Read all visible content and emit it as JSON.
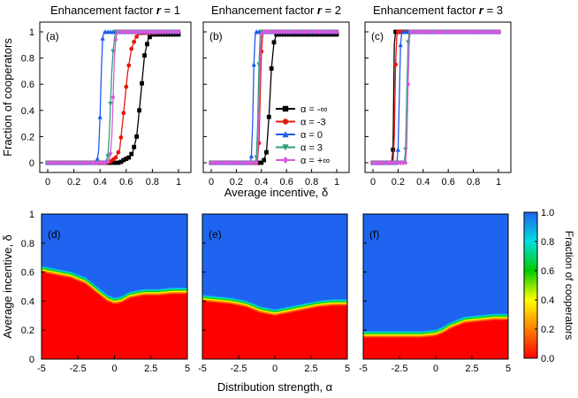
{
  "chart_data": [
    {
      "type": "line",
      "panel": "(a)",
      "title_prefix": "Enhancement factor ",
      "title_var": "r",
      "title_suffix": " = 1",
      "ylabel": "Fraction of cooperators",
      "xlim": [
        0,
        1
      ],
      "ylim": [
        0,
        1
      ],
      "xticks": [
        "0",
        "0.2",
        "0.4",
        "0.6",
        "0.8",
        "1"
      ],
      "yticks": [
        "0",
        "0.2",
        "0.4",
        "0.6",
        "0.8",
        "1"
      ],
      "series": [
        {
          "name": "α = -∞",
          "color": "#000000",
          "marker": "square",
          "x": [
            0,
            0.55,
            0.58,
            0.62,
            0.65,
            0.68,
            0.71,
            0.74,
            0.77,
            0.8,
            1
          ],
          "y": [
            0,
            0,
            0.02,
            0.04,
            0.08,
            0.2,
            0.5,
            0.82,
            0.95,
            0.98,
            0.98
          ]
        },
        {
          "name": "α = -3",
          "color": "#e8160c",
          "marker": "circle",
          "x": [
            0,
            0.44,
            0.48,
            0.52,
            0.55,
            0.58,
            0.61,
            0.64,
            0.67,
            0.7,
            1
          ],
          "y": [
            0,
            0,
            0.01,
            0.04,
            0.1,
            0.38,
            0.68,
            0.87,
            0.95,
            0.99,
            1
          ]
        },
        {
          "name": "α = 0",
          "color": "#1f5bef",
          "marker": "triangle",
          "x": [
            0,
            0.37,
            0.38,
            0.39,
            0.4,
            0.41,
            0.42,
            0.43,
            1
          ],
          "y": [
            0,
            0,
            0.03,
            0.1,
            0.35,
            0.7,
            0.95,
            1,
            1
          ]
        },
        {
          "name": "α = 3",
          "color": "#2e9e7e",
          "marker": "tri-down",
          "x": [
            0,
            0.44,
            0.46,
            0.47,
            0.48,
            0.49,
            0.5,
            0.51,
            0.52,
            1
          ],
          "y": [
            0,
            0,
            0.05,
            0.2,
            0.45,
            0.7,
            0.85,
            0.95,
            1,
            1
          ]
        },
        {
          "name": "α = +∞",
          "color": "#d35bd9",
          "marker": "diamond",
          "x": [
            0,
            0.45,
            0.47,
            0.48,
            0.49,
            0.5,
            0.51,
            0.52,
            0.53,
            0.54,
            1
          ],
          "y": [
            0,
            0,
            0.02,
            0.07,
            0.2,
            0.5,
            0.8,
            0.94,
            0.99,
            1,
            1
          ]
        }
      ]
    },
    {
      "type": "line",
      "panel": "(b)",
      "title_prefix": "Enhancement factor ",
      "title_var": "r",
      "title_suffix": " = 2",
      "xlabel": "Average incentive, δ",
      "xlim": [
        0,
        1
      ],
      "ylim": [
        0,
        1
      ],
      "xticks": [
        "0",
        "0.2",
        "0.4",
        "0.6",
        "0.8",
        "1"
      ],
      "yticks": [
        "0",
        "0.2",
        "0.4",
        "0.6",
        "0.8",
        "1"
      ],
      "legend": "inside right",
      "series": [
        {
          "name": "α = -∞",
          "color": "#000000",
          "marker": "square",
          "x": [
            0,
            0.4,
            0.42,
            0.44,
            0.46,
            0.48,
            0.5,
            0.52,
            1
          ],
          "y": [
            0,
            0,
            0.02,
            0.08,
            0.35,
            0.72,
            0.92,
            0.98,
            0.98
          ]
        },
        {
          "name": "α = -3",
          "color": "#e8160c",
          "marker": "circle",
          "x": [
            0,
            0.36,
            0.37,
            0.38,
            0.39,
            0.4,
            0.41,
            0.42,
            1
          ],
          "y": [
            0,
            0,
            0.03,
            0.15,
            0.5,
            0.85,
            0.97,
            1,
            1
          ]
        },
        {
          "name": "α = 0",
          "color": "#1f5bef",
          "marker": "triangle",
          "x": [
            0,
            0.31,
            0.32,
            0.33,
            0.34,
            0.35,
            0.36,
            1
          ],
          "y": [
            0,
            0,
            0.05,
            0.3,
            0.75,
            0.97,
            1,
            1
          ]
        },
        {
          "name": "α = 3",
          "color": "#2e9e7e",
          "marker": "tri-down",
          "x": [
            0,
            0.35,
            0.36,
            0.37,
            0.38,
            0.39,
            0.4,
            1
          ],
          "y": [
            0,
            0,
            0.04,
            0.3,
            0.75,
            0.97,
            1,
            1
          ]
        },
        {
          "name": "α = +∞",
          "color": "#d35bd9",
          "marker": "diamond",
          "x": [
            0,
            0.36,
            0.37,
            0.38,
            0.39,
            0.4,
            0.41,
            1
          ],
          "y": [
            0,
            0,
            0.05,
            0.35,
            0.8,
            0.98,
            1,
            1
          ]
        }
      ]
    },
    {
      "type": "line",
      "panel": "(c)",
      "title_prefix": "Enhancement factor ",
      "title_var": "r",
      "title_suffix": " = 3",
      "xlim": [
        0,
        1
      ],
      "ylim": [
        0,
        1
      ],
      "xticks": [
        "0",
        "0.2",
        "0.4",
        "0.6",
        "0.8",
        "1"
      ],
      "yticks": [
        "0",
        "0.2",
        "0.4",
        "0.6",
        "0.8",
        "1"
      ],
      "series": [
        {
          "name": "α = -∞",
          "color": "#000000",
          "marker": "square",
          "x": [
            0,
            0.15,
            0.16,
            0.17,
            0.18,
            1
          ],
          "y": [
            0,
            0,
            0.1,
            0.9,
            1,
            1
          ]
        },
        {
          "name": "α = -3",
          "color": "#e8160c",
          "marker": "circle",
          "x": [
            0,
            0.16,
            0.17,
            0.18,
            0.19,
            0.2,
            1
          ],
          "y": [
            0,
            0,
            0.2,
            0.75,
            0.97,
            1,
            1
          ]
        },
        {
          "name": "α = 0",
          "color": "#1f5bef",
          "marker": "triangle",
          "x": [
            0,
            0.19,
            0.2,
            0.21,
            0.22,
            0.23,
            1
          ],
          "y": [
            0,
            0,
            0.1,
            0.5,
            0.9,
            1,
            1
          ]
        },
        {
          "name": "α = 3",
          "color": "#2e9e7e",
          "marker": "tri-down",
          "x": [
            0,
            0.25,
            0.26,
            0.27,
            0.28,
            0.29,
            1
          ],
          "y": [
            0,
            0,
            0.1,
            0.55,
            0.92,
            1,
            1
          ]
        },
        {
          "name": "α = +∞",
          "color": "#d35bd9",
          "marker": "diamond",
          "x": [
            0,
            0.26,
            0.27,
            0.28,
            0.29,
            0.3,
            1
          ],
          "y": [
            0,
            0,
            0.15,
            0.6,
            0.95,
            1,
            1
          ]
        }
      ]
    },
    {
      "type": "heatmap",
      "panel": "(d)",
      "ylabel": "Average incentive, δ",
      "xlim": [
        -5,
        5
      ],
      "ylim": [
        0,
        1
      ],
      "xticks": [
        "-5",
        "-2.5",
        "0",
        "2.5",
        "5"
      ],
      "yticks": [
        "0",
        "0.2",
        "0.4",
        "0.6",
        "0.8",
        "1"
      ],
      "boundary_alpha": [
        -5,
        -4,
        -3,
        -2,
        -1,
        -0.5,
        0,
        0.5,
        1,
        2,
        3,
        4,
        5
      ],
      "boundary_delta": [
        0.62,
        0.6,
        0.58,
        0.54,
        0.46,
        0.42,
        0.4,
        0.41,
        0.44,
        0.46,
        0.46,
        0.47,
        0.47
      ]
    },
    {
      "type": "heatmap",
      "panel": "(e)",
      "xlabel": "Distribution strength, α",
      "xlim": [
        -5,
        5
      ],
      "ylim": [
        0,
        1
      ],
      "xticks": [
        "-5",
        "-2.5",
        "0",
        "2.5",
        "5"
      ],
      "yticks": [
        "0",
        "0.2",
        "0.4",
        "0.6",
        "0.8",
        "1"
      ],
      "boundary_alpha": [
        -5,
        -4,
        -3,
        -2,
        -1,
        0,
        1,
        2,
        3,
        4,
        5
      ],
      "boundary_delta": [
        0.42,
        0.41,
        0.4,
        0.38,
        0.34,
        0.32,
        0.34,
        0.36,
        0.38,
        0.39,
        0.39
      ]
    },
    {
      "type": "heatmap",
      "panel": "(f)",
      "xlim": [
        -5,
        5
      ],
      "ylim": [
        0,
        1
      ],
      "xticks": [
        "-5",
        "-2.5",
        "0",
        "2.5",
        "5"
      ],
      "yticks": [
        "0",
        "0.2",
        "0.4",
        "0.6",
        "0.8",
        "1"
      ],
      "boundary_alpha": [
        -5,
        -4,
        -3,
        -2,
        -1,
        0,
        0.5,
        1,
        1.5,
        2,
        3,
        4,
        5
      ],
      "boundary_delta": [
        0.17,
        0.17,
        0.17,
        0.17,
        0.17,
        0.18,
        0.2,
        0.23,
        0.25,
        0.27,
        0.28,
        0.29,
        0.29
      ]
    }
  ],
  "colorbar": {
    "label": "Fraction of cooperators",
    "ticks": [
      "0.0",
      "0.2",
      "0.4",
      "0.6",
      "0.8",
      "1.0"
    ],
    "range": [
      0,
      1
    ],
    "colors": [
      "#ff0000",
      "#ff8000",
      "#ffff00",
      "#00cc00",
      "#00e0e0",
      "#1e64f0"
    ]
  }
}
